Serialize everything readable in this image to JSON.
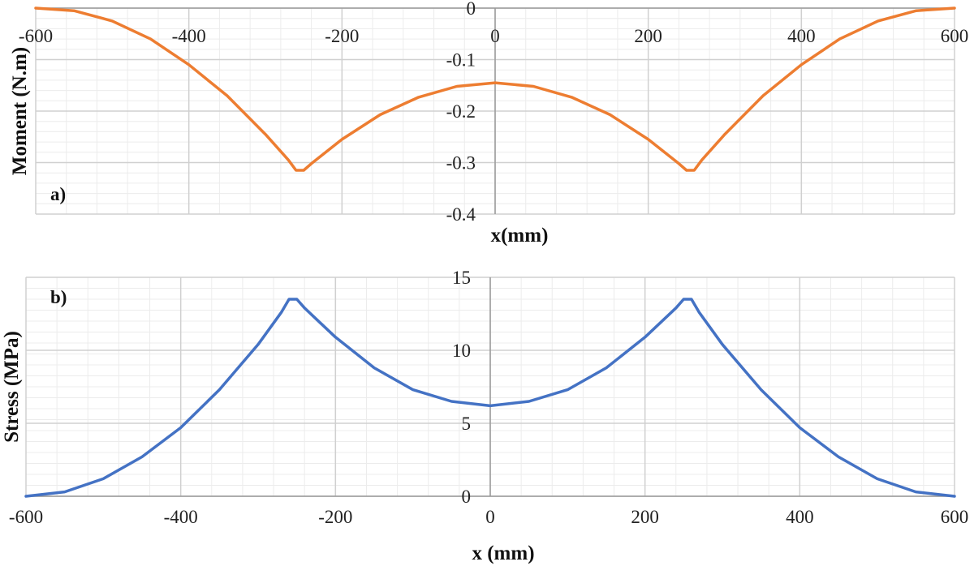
{
  "chart_data": [
    {
      "type": "line",
      "panel_label": "a)",
      "title": "",
      "xlabel": "x(mm)",
      "ylabel": "Moment (N.m)",
      "xlim": [
        -600,
        600
      ],
      "ylim": [
        -0.4,
        0
      ],
      "xticks": [
        "-600",
        "-400",
        "-200",
        "0",
        "200",
        "400",
        "600"
      ],
      "yticks": [
        "0",
        "-0.1",
        "-0.2",
        "-0.3",
        "-0.4"
      ],
      "grid": true,
      "series": [
        {
          "name": "Moment",
          "color": "#ED7D31",
          "x": [
            -600,
            -550,
            -500,
            -450,
            -400,
            -350,
            -300,
            -270,
            -260,
            -250,
            -240,
            -200,
            -150,
            -100,
            -50,
            0,
            50,
            100,
            150,
            200,
            240,
            250,
            260,
            270,
            300,
            350,
            400,
            450,
            500,
            550,
            600
          ],
          "y": [
            0,
            -0.005,
            -0.025,
            -0.06,
            -0.11,
            -0.17,
            -0.245,
            -0.295,
            -0.315,
            -0.315,
            -0.302,
            -0.255,
            -0.207,
            -0.173,
            -0.152,
            -0.145,
            -0.152,
            -0.173,
            -0.207,
            -0.255,
            -0.302,
            -0.315,
            -0.315,
            -0.295,
            -0.245,
            -0.17,
            -0.11,
            -0.06,
            -0.025,
            -0.005,
            0
          ]
        }
      ]
    },
    {
      "type": "line",
      "panel_label": "b)",
      "title": "",
      "xlabel": "x (mm)",
      "ylabel": "Stress  (MPa)",
      "xlim": [
        -600,
        600
      ],
      "ylim": [
        0,
        15
      ],
      "xticks": [
        "-600",
        "-400",
        "-200",
        "0",
        "200",
        "400",
        "600"
      ],
      "yticks": [
        "0",
        "5",
        "10",
        "15"
      ],
      "grid": true,
      "series": [
        {
          "name": "Stress",
          "color": "#4472C4",
          "x": [
            -600,
            -550,
            -500,
            -450,
            -400,
            -350,
            -300,
            -270,
            -260,
            -250,
            -240,
            -200,
            -150,
            -100,
            -50,
            0,
            50,
            100,
            150,
            200,
            240,
            250,
            260,
            270,
            300,
            350,
            400,
            450,
            500,
            550,
            600
          ],
          "y": [
            0,
            0.3,
            1.2,
            2.7,
            4.7,
            7.3,
            10.4,
            12.6,
            13.5,
            13.5,
            12.9,
            10.9,
            8.8,
            7.3,
            6.5,
            6.2,
            6.5,
            7.3,
            8.8,
            10.9,
            12.9,
            13.5,
            13.5,
            12.6,
            10.4,
            7.3,
            4.7,
            2.7,
            1.2,
            0.3,
            0
          ]
        }
      ]
    }
  ]
}
